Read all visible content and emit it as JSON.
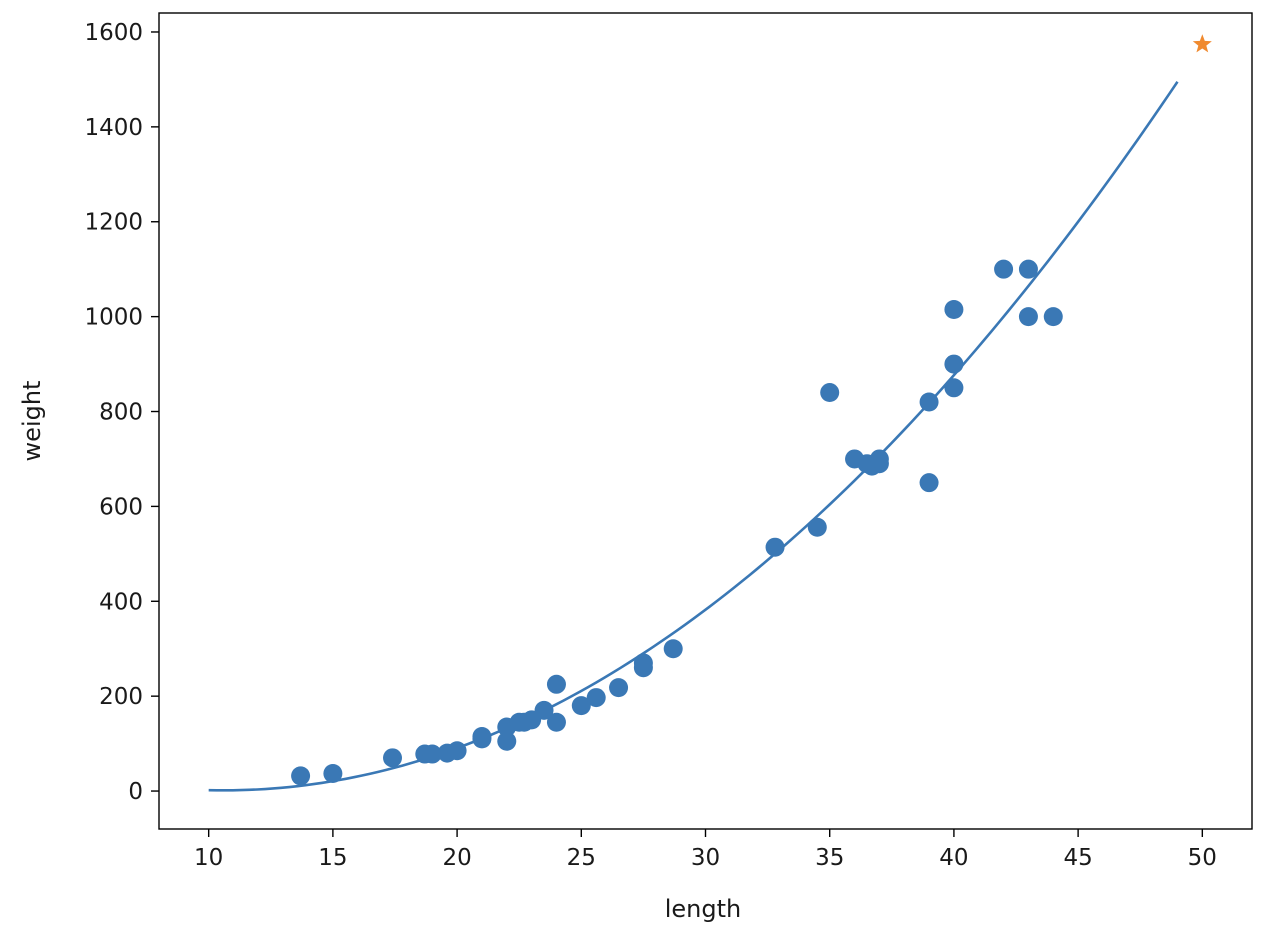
{
  "chart_data": {
    "type": "scatter",
    "title": "",
    "xlabel": "length",
    "ylabel": "weight",
    "xlim": [
      8.0,
      52.0
    ],
    "ylim": [
      -80,
      1640
    ],
    "xticks": [
      10,
      15,
      20,
      25,
      30,
      35,
      40,
      45,
      50
    ],
    "yticks": [
      0,
      200,
      400,
      600,
      800,
      1000,
      1200,
      1400,
      1600
    ],
    "grid": false,
    "legend": "none",
    "colors": {
      "points": "#3a78b5",
      "curve": "#3a78b5",
      "marker": "#f08a2f"
    },
    "series": [
      {
        "kind": "scatter",
        "points": [
          {
            "x": 13.7,
            "y": 32
          },
          {
            "x": 15.0,
            "y": 37
          },
          {
            "x": 17.4,
            "y": 70
          },
          {
            "x": 18.7,
            "y": 78
          },
          {
            "x": 19.0,
            "y": 78
          },
          {
            "x": 19.6,
            "y": 80
          },
          {
            "x": 20.0,
            "y": 85
          },
          {
            "x": 21.0,
            "y": 110
          },
          {
            "x": 21.0,
            "y": 115
          },
          {
            "x": 22.0,
            "y": 105
          },
          {
            "x": 22.0,
            "y": 135
          },
          {
            "x": 22.5,
            "y": 145
          },
          {
            "x": 22.7,
            "y": 145
          },
          {
            "x": 23.0,
            "y": 150
          },
          {
            "x": 23.5,
            "y": 170
          },
          {
            "x": 24.0,
            "y": 145
          },
          {
            "x": 24.0,
            "y": 225
          },
          {
            "x": 25.0,
            "y": 180
          },
          {
            "x": 25.6,
            "y": 197
          },
          {
            "x": 26.5,
            "y": 218
          },
          {
            "x": 27.5,
            "y": 260
          },
          {
            "x": 27.5,
            "y": 270
          },
          {
            "x": 28.7,
            "y": 300
          },
          {
            "x": 32.8,
            "y": 514
          },
          {
            "x": 34.5,
            "y": 556
          },
          {
            "x": 35.0,
            "y": 840
          },
          {
            "x": 36.0,
            "y": 700
          },
          {
            "x": 36.5,
            "y": 690
          },
          {
            "x": 36.7,
            "y": 685
          },
          {
            "x": 37.0,
            "y": 690
          },
          {
            "x": 37.0,
            "y": 700
          },
          {
            "x": 39.0,
            "y": 650
          },
          {
            "x": 39.0,
            "y": 820
          },
          {
            "x": 40.0,
            "y": 850
          },
          {
            "x": 40.0,
            "y": 900
          },
          {
            "x": 40.0,
            "y": 1015
          },
          {
            "x": 42.0,
            "y": 1100
          },
          {
            "x": 43.0,
            "y": 1100
          },
          {
            "x": 43.0,
            "y": 1000
          },
          {
            "x": 44.0,
            "y": 1000
          }
        ]
      },
      {
        "kind": "line",
        "x_range": [
          10,
          49
        ],
        "coefficients": {
          "a": 1.01433,
          "b": -21.5579,
          "c": 116.0502
        }
      },
      {
        "kind": "marker",
        "shape": "star",
        "points": [
          {
            "x": 50,
            "y": 1574
          }
        ]
      }
    ]
  }
}
